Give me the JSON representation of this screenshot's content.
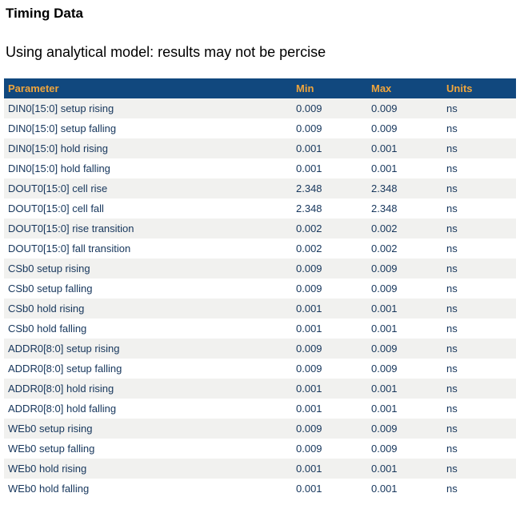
{
  "page": {
    "title": "Timing Data",
    "subtitle": "Using analytical model: results may not be percise"
  },
  "table": {
    "columns": [
      "Parameter",
      "Min",
      "Max",
      "Units"
    ],
    "rows": [
      {
        "parameter": "DIN0[15:0] setup rising",
        "min": "0.009",
        "max": "0.009",
        "units": "ns"
      },
      {
        "parameter": "DIN0[15:0] setup falling",
        "min": "0.009",
        "max": "0.009",
        "units": "ns"
      },
      {
        "parameter": "DIN0[15:0] hold rising",
        "min": "0.001",
        "max": "0.001",
        "units": "ns"
      },
      {
        "parameter": "DIN0[15:0] hold falling",
        "min": "0.001",
        "max": "0.001",
        "units": "ns"
      },
      {
        "parameter": "DOUT0[15:0] cell rise",
        "min": "2.348",
        "max": "2.348",
        "units": "ns"
      },
      {
        "parameter": "DOUT0[15:0] cell fall",
        "min": "2.348",
        "max": "2.348",
        "units": "ns"
      },
      {
        "parameter": "DOUT0[15:0] rise transition",
        "min": "0.002",
        "max": "0.002",
        "units": "ns"
      },
      {
        "parameter": "DOUT0[15:0] fall transition",
        "min": "0.002",
        "max": "0.002",
        "units": "ns"
      },
      {
        "parameter": "CSb0 setup rising",
        "min": "0.009",
        "max": "0.009",
        "units": "ns"
      },
      {
        "parameter": "CSb0 setup falling",
        "min": "0.009",
        "max": "0.009",
        "units": "ns"
      },
      {
        "parameter": "CSb0 hold rising",
        "min": "0.001",
        "max": "0.001",
        "units": "ns"
      },
      {
        "parameter": "CSb0 hold falling",
        "min": "0.001",
        "max": "0.001",
        "units": "ns"
      },
      {
        "parameter": "ADDR0[8:0] setup rising",
        "min": "0.009",
        "max": "0.009",
        "units": "ns"
      },
      {
        "parameter": "ADDR0[8:0] setup falling",
        "min": "0.009",
        "max": "0.009",
        "units": "ns"
      },
      {
        "parameter": "ADDR0[8:0] hold rising",
        "min": "0.001",
        "max": "0.001",
        "units": "ns"
      },
      {
        "parameter": "ADDR0[8:0] hold falling",
        "min": "0.001",
        "max": "0.001",
        "units": "ns"
      },
      {
        "parameter": "WEb0 setup rising",
        "min": "0.009",
        "max": "0.009",
        "units": "ns"
      },
      {
        "parameter": "WEb0 setup falling",
        "min": "0.009",
        "max": "0.009",
        "units": "ns"
      },
      {
        "parameter": "WEb0 hold rising",
        "min": "0.001",
        "max": "0.001",
        "units": "ns"
      },
      {
        "parameter": "WEb0 hold falling",
        "min": "0.001",
        "max": "0.001",
        "units": "ns"
      }
    ]
  },
  "colors": {
    "header_bg": "#11487e",
    "header_text": "#f0a53c",
    "row_text": "#16365c",
    "alt_row_bg": "#f1f1ef",
    "page_bg": "#ffffff"
  }
}
